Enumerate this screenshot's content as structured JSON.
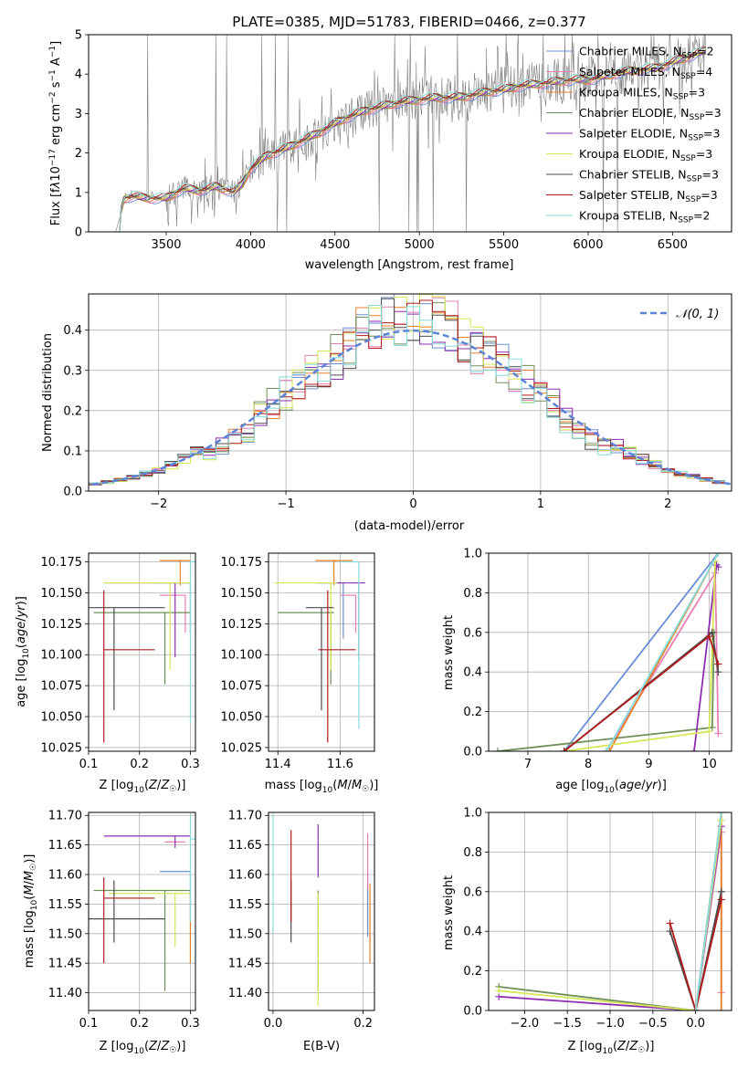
{
  "colors": {
    "chabrier_miles": "#6a8fd6",
    "salpeter_miles": "#e87fb6",
    "kroupa_miles": "#e8802a",
    "chabrier_elodie": "#6f8f58",
    "salpeter_elodie": "#8e2fb0",
    "kroupa_elodie": "#d6e656",
    "chabrier_stelib": "#4d4d4d",
    "salpeter_stelib": "#b01c1c",
    "kroupa_stelib": "#86dcdc",
    "grid": "#b0b0b0",
    "gauss": "#5b84d8",
    "spectrum": "#7f7f7f"
  },
  "chart_data": [
    {
      "type": "line",
      "id": "spectrum",
      "title": "PLATE=0385, MJD=51783, FIBERID=0466, z=0.377",
      "xlabel": "wavelength [Angstrom, rest frame]",
      "ylabel": "Flux [f_λ 10^-17 erg cm^-2 s^-1 A^-1]",
      "xlim": [
        3040,
        6850
      ],
      "ylim": [
        0,
        5
      ],
      "xticks": [
        "3500",
        "4000",
        "4500",
        "5000",
        "5500",
        "6000",
        "6500"
      ],
      "xtick_values": [
        3500,
        4000,
        4500,
        5000,
        5500,
        6000,
        6500
      ],
      "yticks": [
        "0",
        "1",
        "2",
        "3",
        "4",
        "5"
      ],
      "ytick_values": [
        0,
        1,
        2,
        3,
        4,
        5
      ],
      "grid": false,
      "legend_position": "top-right",
      "legend": [
        "Chabrier MILES, N_SSP=2",
        "Salpeter MILES, N_SSP=4",
        "Kroupa MILES, N_SSP=3",
        "Chabrier ELODIE, N_SSP=3",
        "Salpeter ELODIE, N_SSP=3",
        "Kroupa ELODIE, N_SSP=3",
        "Chabrier STELIB, N_SSP=3",
        "Salpeter STELIB, N_SSP=3",
        "Kroupa STELIB, N_SSP=2"
      ],
      "continuum": {
        "x": [
          3200,
          3250,
          3300,
          3400,
          3500,
          3600,
          3700,
          3800,
          3900,
          3950,
          4000,
          4100,
          4200,
          4300,
          4400,
          4500,
          4600,
          4700,
          4800,
          4900,
          5000,
          5100,
          5200,
          5300,
          5400,
          5500,
          5600,
          5700,
          5800,
          5900,
          6000,
          6100,
          6200,
          6300,
          6400,
          6500,
          6600,
          6700
        ],
        "y": [
          0.0,
          0.85,
          0.9,
          0.85,
          0.85,
          1.1,
          1.05,
          1.15,
          1.0,
          1.2,
          1.6,
          1.95,
          2.1,
          2.3,
          2.5,
          2.75,
          2.95,
          3.1,
          3.2,
          3.3,
          3.35,
          3.4,
          3.4,
          3.45,
          3.55,
          3.6,
          3.7,
          3.75,
          3.8,
          3.85,
          3.85,
          3.95,
          4.05,
          4.1,
          4.15,
          4.3,
          4.45,
          4.6
        ]
      }
    },
    {
      "type": "step",
      "id": "residuals",
      "xlabel": "(data-model)/error",
      "ylabel": "Normed distribution",
      "xlim": [
        -2.55,
        2.5
      ],
      "ylim": [
        0,
        0.49
      ],
      "xticks": [
        "−2",
        "−1",
        "0",
        "1",
        "2"
      ],
      "xtick_values": [
        -2,
        -1,
        0,
        1,
        2
      ],
      "yticks": [
        "0.0",
        "0.1",
        "0.2",
        "0.3",
        "0.4"
      ],
      "ytick_values": [
        0,
        0.1,
        0.2,
        0.3,
        0.4
      ],
      "grid": true,
      "legend_position": "top-right",
      "legend": [
        "𝒩(0, 1)"
      ]
    },
    {
      "type": "scatter",
      "id": "z-age",
      "xlabel": "Z [log₁₀(Z/Z☉)]",
      "ylabel": "age  [log₁₀(age/yr)]",
      "xlim": [
        0.1,
        0.31
      ],
      "ylim": [
        10.022,
        10.182
      ],
      "xticks": [
        "0.1",
        "0.2",
        "0.3"
      ],
      "xtick_values": [
        0.1,
        0.2,
        0.3
      ],
      "yticks": [
        "10.025",
        "10.050",
        "10.075",
        "10.100",
        "10.125",
        "10.150",
        "10.175"
      ],
      "ytick_values": [
        10.025,
        10.05,
        10.075,
        10.1,
        10.125,
        10.15,
        10.175
      ],
      "grid": true,
      "points": [
        {
          "c": "chabrier_miles",
          "x": 0.3,
          "xerr": [
            0.07,
            0.0
          ],
          "y": 10.158,
          "yerr": [
            0.04,
            0.0
          ]
        },
        {
          "c": "salpeter_miles",
          "x": 0.29,
          "xerr": [
            0.05,
            0.0
          ],
          "y": 10.148,
          "yerr": [
            0.03,
            0.0
          ]
        },
        {
          "c": "kroupa_miles",
          "x": 0.28,
          "xerr": [
            0.04,
            0.02
          ],
          "y": 10.176,
          "yerr": [
            0.02,
            0.0
          ]
        },
        {
          "c": "chabrier_elodie",
          "x": 0.25,
          "xerr": [
            0.14,
            0.05
          ],
          "y": 10.134,
          "yerr": [
            0.058,
            0.0
          ]
        },
        {
          "c": "salpeter_elodie",
          "x": 0.27,
          "xerr": [
            0.14,
            0.03
          ],
          "y": 10.158,
          "yerr": [
            0.06,
            0.0
          ]
        },
        {
          "c": "kroupa_elodie",
          "x": 0.26,
          "xerr": [
            0.13,
            0.04
          ],
          "y": 10.158,
          "yerr": [
            0.07,
            0.0
          ]
        },
        {
          "c": "chabrier_stelib",
          "x": 0.15,
          "xerr": [
            0.05,
            0.1
          ],
          "y": 10.138,
          "yerr": [
            0.083,
            0.0
          ]
        },
        {
          "c": "salpeter_stelib",
          "x": 0.13,
          "xerr": [
            0.0,
            0.1
          ],
          "y": 10.104,
          "yerr": [
            0.075,
            0.048
          ]
        },
        {
          "c": "kroupa_stelib",
          "x": 0.3,
          "xerr": [
            0.0,
            0.01
          ],
          "y": 10.175,
          "yerr": [
            0.13,
            0.0
          ]
        }
      ]
    },
    {
      "type": "scatter",
      "id": "mass-age",
      "xlabel": "mass [log₁₀(M/M☉)]",
      "xlim": [
        11.37,
        11.71
      ],
      "ylim": [
        10.022,
        10.182
      ],
      "xticks": [
        "11.4",
        "11.6"
      ],
      "xtick_values": [
        11.4,
        11.6
      ],
      "yticks": [
        "10.025",
        "10.050",
        "10.075",
        "10.100",
        "10.125",
        "10.150",
        "10.175"
      ],
      "ytick_values": [
        10.025,
        10.05,
        10.075,
        10.1,
        10.125,
        10.15,
        10.175
      ],
      "grid": true,
      "points": [
        {
          "c": "chabrier_miles",
          "x": 11.61,
          "xerr": [
            0.08,
            0.0
          ],
          "y": 10.158,
          "yerr": [
            0.045,
            0.0
          ]
        },
        {
          "c": "salpeter_miles",
          "x": 11.65,
          "xerr": [
            0.05,
            0.0
          ],
          "y": 10.148,
          "yerr": [
            0.03,
            0.0
          ]
        },
        {
          "c": "kroupa_miles",
          "x": 11.58,
          "xerr": [
            0.06,
            0.06
          ],
          "y": 10.176,
          "yerr": [
            0.02,
            0.0
          ]
        },
        {
          "c": "chabrier_elodie",
          "x": 11.57,
          "xerr": [
            0.17,
            0.01
          ],
          "y": 10.134,
          "yerr": [
            0.058,
            0.0
          ]
        },
        {
          "c": "salpeter_elodie",
          "x": 11.66,
          "xerr": [
            0.14,
            0.02
          ],
          "y": 10.158,
          "yerr": [
            0.062,
            0.0
          ]
        },
        {
          "c": "kroupa_elodie",
          "x": 11.57,
          "xerr": [
            0.18,
            0.02
          ],
          "y": 10.158,
          "yerr": [
            0.07,
            0.0
          ]
        },
        {
          "c": "chabrier_stelib",
          "x": 11.54,
          "xerr": [
            0.05,
            0.04
          ],
          "y": 10.138,
          "yerr": [
            0.083,
            0.0
          ]
        },
        {
          "c": "salpeter_stelib",
          "x": 11.56,
          "xerr": [
            0.03,
            0.09
          ],
          "y": 10.104,
          "yerr": [
            0.075,
            0.048
          ]
        },
        {
          "c": "kroupa_stelib",
          "x": 11.66,
          "xerr": [
            0.06,
            0.0
          ],
          "y": 10.175,
          "yerr": [
            0.135,
            0.0
          ]
        }
      ]
    },
    {
      "type": "line",
      "id": "age-weight",
      "xlabel": "age  [log₁₀(age/yr)]",
      "ylabel": "mass weight",
      "xlim": [
        6.35,
        10.37
      ],
      "ylim": [
        0,
        1
      ],
      "xticks": [
        "7",
        "8",
        "9",
        "10"
      ],
      "xtick_values": [
        7,
        8,
        9,
        10
      ],
      "yticks": [
        "0.0",
        "0.2",
        "0.4",
        "0.6",
        "0.8",
        "1.0"
      ],
      "ytick_values": [
        0,
        0.2,
        0.4,
        0.6,
        0.8,
        1.0
      ],
      "grid": true,
      "series": [
        {
          "c": "chabrier_miles",
          "x": [
            7.6,
            10.15
          ],
          "y": [
            0.0,
            1.0
          ]
        },
        {
          "c": "salpeter_miles",
          "x": [
            8.3,
            10.1,
            10.15
          ],
          "y": [
            0.0,
            0.9,
            0.09
          ]
        },
        {
          "c": "kroupa_miles",
          "x": [
            8.35,
            10.15
          ],
          "y": [
            0.0,
            1.0
          ]
        },
        {
          "c": "chabrier_elodie",
          "x": [
            6.5,
            10.05,
            10.08
          ],
          "y": [
            0.0,
            0.12,
            0.6
          ]
        },
        {
          "c": "salpeter_elodie",
          "x": [
            9.75,
            10.12,
            10.15
          ],
          "y": [
            0.0,
            0.94,
            0.93
          ]
        },
        {
          "c": "kroupa_elodie",
          "x": [
            7.6,
            10.0,
            10.1
          ],
          "y": [
            0.0,
            0.1,
            0.96
          ]
        },
        {
          "c": "chabrier_stelib",
          "x": [
            7.6,
            10.05,
            10.15
          ],
          "y": [
            0.0,
            0.6,
            0.4
          ]
        },
        {
          "c": "salpeter_stelib",
          "x": [
            7.6,
            10.0,
            10.15
          ],
          "y": [
            0.0,
            0.58,
            0.44
          ]
        },
        {
          "c": "kroupa_stelib",
          "x": [
            8.3,
            10.15
          ],
          "y": [
            0.0,
            1.0
          ]
        }
      ]
    },
    {
      "type": "scatter",
      "id": "z-mass",
      "xlabel": "Z [log₁₀(Z/Z☉)]",
      "ylabel": "mass [log₁₀(M/M☉)]",
      "xlim": [
        0.1,
        0.31
      ],
      "ylim": [
        11.37,
        11.705
      ],
      "xticks": [
        "0.1",
        "0.2",
        "0.3"
      ],
      "xtick_values": [
        0.1,
        0.2,
        0.3
      ],
      "yticks": [
        "11.40",
        "11.45",
        "11.50",
        "11.55",
        "11.60",
        "11.65",
        "11.70"
      ],
      "ytick_values": [
        11.4,
        11.45,
        11.5,
        11.55,
        11.6,
        11.65,
        11.7
      ],
      "grid": true,
      "points": [
        {
          "c": "chabrier_miles",
          "x": 0.3,
          "xerr": [
            0.06,
            0.0
          ],
          "y": 11.605,
          "yerr": [
            0.08,
            0.0
          ]
        },
        {
          "c": "salpeter_miles",
          "x": 0.29,
          "xerr": [
            0.04,
            0.0
          ],
          "y": 11.655,
          "yerr": [
            0.0,
            0.0
          ]
        },
        {
          "c": "kroupa_miles",
          "x": 0.3,
          "xerr": [
            0.0,
            0.0
          ],
          "y": 11.57,
          "yerr": [
            0.12,
            0.0
          ]
        },
        {
          "c": "chabrier_elodie",
          "x": 0.25,
          "xerr": [
            0.14,
            0.05
          ],
          "y": 11.573,
          "yerr": [
            0.17,
            0.0
          ]
        },
        {
          "c": "salpeter_elodie",
          "x": 0.27,
          "xerr": [
            0.14,
            0.03
          ],
          "y": 11.665,
          "yerr": [
            0.02,
            0.0
          ]
        },
        {
          "c": "kroupa_elodie",
          "x": 0.27,
          "xerr": [
            0.13,
            0.03
          ],
          "y": 11.568,
          "yerr": [
            0.09,
            0.0
          ]
        },
        {
          "c": "chabrier_stelib",
          "x": 0.15,
          "xerr": [
            0.05,
            0.1
          ],
          "y": 11.525,
          "yerr": [
            0.04,
            0.065
          ]
        },
        {
          "c": "salpeter_stelib",
          "x": 0.13,
          "xerr": [
            0.0,
            0.1
          ],
          "y": 11.56,
          "yerr": [
            0.11,
            0.035
          ]
        },
        {
          "c": "kroupa_stelib",
          "x": 0.3,
          "xerr": [
            0.0,
            0.01
          ],
          "y": 11.66,
          "yerr": [
            0.14,
            0.04
          ]
        }
      ]
    },
    {
      "type": "scatter",
      "id": "ebv-mass",
      "xlabel": "E(B-V)",
      "xlim": [
        -0.01,
        0.225
      ],
      "ylim": [
        11.37,
        11.705
      ],
      "xticks": [
        "0.0",
        "0.2"
      ],
      "xtick_values": [
        0.0,
        0.2
      ],
      "yticks": [
        "11.40",
        "11.45",
        "11.50",
        "11.55",
        "11.60",
        "11.65",
        "11.70"
      ],
      "ytick_values": [
        11.4,
        11.45,
        11.5,
        11.55,
        11.6,
        11.65,
        11.7
      ],
      "grid": true,
      "points": [
        {
          "c": "chabrier_miles",
          "x": 0.21,
          "xerr": [
            0,
            0
          ],
          "y": 11.605,
          "yerr": [
            0.11,
            0.0
          ]
        },
        {
          "c": "salpeter_miles",
          "x": 0.21,
          "xerr": [
            0,
            0
          ],
          "y": 11.655,
          "yerr": [
            0.08,
            0.015
          ]
        },
        {
          "c": "kroupa_miles",
          "x": 0.215,
          "xerr": [
            0,
            0
          ],
          "y": 11.57,
          "yerr": [
            0.12,
            0.015
          ]
        },
        {
          "c": "chabrier_elodie",
          "x": 0.1,
          "xerr": [
            0,
            0
          ],
          "y": 11.573,
          "yerr": [
            0.17,
            0.0
          ]
        },
        {
          "c": "salpeter_elodie",
          "x": 0.1,
          "xerr": [
            0,
            0
          ],
          "y": 11.665,
          "yerr": [
            0.07,
            0.02
          ]
        },
        {
          "c": "kroupa_elodie",
          "x": 0.1,
          "xerr": [
            0,
            0
          ],
          "y": 11.568,
          "yerr": [
            0.19,
            0.0
          ]
        },
        {
          "c": "chabrier_stelib",
          "x": 0.04,
          "xerr": [
            0,
            0
          ],
          "y": 11.525,
          "yerr": [
            0.04,
            0.065
          ]
        },
        {
          "c": "salpeter_stelib",
          "x": 0.04,
          "xerr": [
            0,
            0
          ],
          "y": 11.56,
          "yerr": [
            0.04,
            0.115
          ]
        },
        {
          "c": "kroupa_stelib",
          "x": 0.0,
          "xerr": [
            0,
            0
          ],
          "y": 11.66,
          "yerr": [
            0.16,
            0.04
          ]
        }
      ]
    },
    {
      "type": "line",
      "id": "z-weight",
      "xlabel": "Z [log₁₀(Z/Z☉)]",
      "ylabel": "mass weight",
      "xlim": [
        -2.42,
        0.42
      ],
      "ylim": [
        0,
        1
      ],
      "xticks": [
        "−2.0",
        "−1.5",
        "−1.0",
        "−0.5",
        "0.0"
      ],
      "xtick_values": [
        -2.0,
        -1.5,
        -1.0,
        -0.5,
        0.0
      ],
      "yticks": [
        "0.0",
        "0.2",
        "0.4",
        "0.6",
        "0.8",
        "1.0"
      ],
      "ytick_values": [
        0,
        0.2,
        0.4,
        0.6,
        0.8,
        1.0
      ],
      "grid": true,
      "series": [
        {
          "c": "chabrier_miles",
          "x": [
            0.0,
            0.3
          ],
          "y": [
            0.0,
            1.0
          ]
        },
        {
          "c": "salpeter_miles",
          "x": [
            0.0,
            0.3,
            0.3
          ],
          "y": [
            0.0,
            0.9,
            0.09
          ]
        },
        {
          "c": "kroupa_miles",
          "x": [
            0.0,
            0.3,
            0.3
          ],
          "y": [
            0.0,
            1.0,
            0.0
          ]
        },
        {
          "c": "chabrier_elodie",
          "x": [
            -2.3,
            0.0,
            0.3
          ],
          "y": [
            0.12,
            0.0,
            0.6
          ]
        },
        {
          "c": "salpeter_elodie",
          "x": [
            -2.3,
            0.0,
            0.3
          ],
          "y": [
            0.07,
            0.0,
            0.93
          ]
        },
        {
          "c": "kroupa_elodie",
          "x": [
            -2.3,
            0.0,
            0.3
          ],
          "y": [
            0.1,
            0.0,
            0.96
          ]
        },
        {
          "c": "chabrier_stelib",
          "x": [
            -0.3,
            0.0,
            0.3
          ],
          "y": [
            0.4,
            0.0,
            0.6
          ]
        },
        {
          "c": "salpeter_stelib",
          "x": [
            -0.3,
            0.0,
            0.3
          ],
          "y": [
            0.44,
            0.0,
            0.56
          ]
        },
        {
          "c": "kroupa_stelib",
          "x": [
            0.0,
            0.3
          ],
          "y": [
            0.0,
            1.0
          ]
        }
      ]
    }
  ]
}
